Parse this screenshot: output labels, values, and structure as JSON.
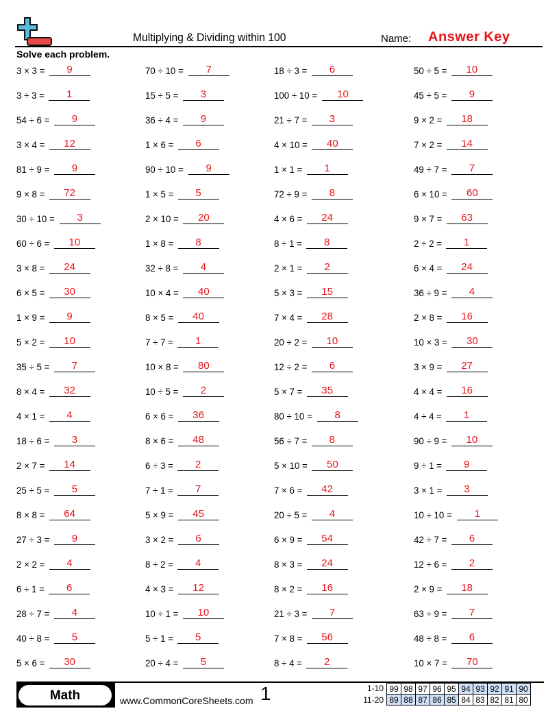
{
  "header": {
    "title": "Multiplying & Dividing within 100",
    "name_label": "Name:",
    "answer_key": "Answer Key",
    "logo_icon": "plus-minus-icon"
  },
  "instructions": "Solve each problem.",
  "colors": {
    "answer": "#e8141b",
    "score_highlight": "#cfe0f7",
    "logo_plus": "#5bbbe0",
    "logo_minus": "#e84848"
  },
  "rows": [
    [
      [
        "3 × 3 =",
        "9"
      ],
      [
        "70 ÷ 10 =",
        "7"
      ],
      [
        "18 ÷ 3 =",
        "6"
      ],
      [
        "50 ÷ 5 =",
        "10"
      ]
    ],
    [
      [
        "3 ÷ 3 =",
        "1"
      ],
      [
        "15 ÷ 5 =",
        "3"
      ],
      [
        "100 ÷ 10 =",
        "10"
      ],
      [
        "45 ÷ 5 =",
        "9"
      ]
    ],
    [
      [
        "54 ÷ 6 =",
        "9"
      ],
      [
        "36 ÷ 4 =",
        "9"
      ],
      [
        "21 ÷ 7 =",
        "3"
      ],
      [
        "9 × 2 =",
        "18"
      ]
    ],
    [
      [
        "3 × 4 =",
        "12"
      ],
      [
        "1 × 6 =",
        "6"
      ],
      [
        "4 × 10 =",
        "40"
      ],
      [
        "7 × 2 =",
        "14"
      ]
    ],
    [
      [
        "81 ÷ 9 =",
        "9"
      ],
      [
        "90 ÷ 10 =",
        "9"
      ],
      [
        "1 × 1 =",
        "1"
      ],
      [
        "49 ÷ 7 =",
        "7"
      ]
    ],
    [
      [
        "9 × 8 =",
        "72"
      ],
      [
        "1 × 5 =",
        "5"
      ],
      [
        "72 ÷ 9 =",
        "8"
      ],
      [
        "6 × 10 =",
        "60"
      ]
    ],
    [
      [
        "30 ÷ 10 =",
        "3"
      ],
      [
        "2 × 10 =",
        "20"
      ],
      [
        "4 × 6 =",
        "24"
      ],
      [
        "9 × 7 =",
        "63"
      ]
    ],
    [
      [
        "60 ÷ 6 =",
        "10"
      ],
      [
        "1 × 8 =",
        "8"
      ],
      [
        "8 ÷ 1 =",
        "8"
      ],
      [
        "2 ÷ 2 =",
        "1"
      ]
    ],
    [
      [
        "3 × 8 =",
        "24"
      ],
      [
        "32 ÷ 8 =",
        "4"
      ],
      [
        "2 × 1 =",
        "2"
      ],
      [
        "6 × 4 =",
        "24"
      ]
    ],
    [
      [
        "6 × 5 =",
        "30"
      ],
      [
        "10 × 4 =",
        "40"
      ],
      [
        "5 × 3 =",
        "15"
      ],
      [
        "36 ÷ 9 =",
        "4"
      ]
    ],
    [
      [
        "1 × 9 =",
        "9"
      ],
      [
        "8 × 5 =",
        "40"
      ],
      [
        "7 × 4 =",
        "28"
      ],
      [
        "2 × 8 =",
        "16"
      ]
    ],
    [
      [
        "5 × 2 =",
        "10"
      ],
      [
        "7 ÷ 7 =",
        "1"
      ],
      [
        "20 ÷ 2 =",
        "10"
      ],
      [
        "10 × 3 =",
        "30"
      ]
    ],
    [
      [
        "35 ÷ 5 =",
        "7"
      ],
      [
        "10 × 8 =",
        "80"
      ],
      [
        "12 ÷ 2 =",
        "6"
      ],
      [
        "3 × 9 =",
        "27"
      ]
    ],
    [
      [
        "8 × 4 =",
        "32"
      ],
      [
        "10 ÷ 5 =",
        "2"
      ],
      [
        "5 × 7 =",
        "35"
      ],
      [
        "4 × 4 =",
        "16"
      ]
    ],
    [
      [
        "4 × 1 =",
        "4"
      ],
      [
        "6 × 6 =",
        "36"
      ],
      [
        "80 ÷ 10 =",
        "8"
      ],
      [
        "4 ÷ 4 =",
        "1"
      ]
    ],
    [
      [
        "18 ÷ 6 =",
        "3"
      ],
      [
        "8 × 6 =",
        "48"
      ],
      [
        "56 ÷ 7 =",
        "8"
      ],
      [
        "90 ÷ 9 =",
        "10"
      ]
    ],
    [
      [
        "2 × 7 =",
        "14"
      ],
      [
        "6 ÷ 3 =",
        "2"
      ],
      [
        "5 × 10 =",
        "50"
      ],
      [
        "9 ÷ 1 =",
        "9"
      ]
    ],
    [
      [
        "25 ÷ 5 =",
        "5"
      ],
      [
        "7 ÷ 1 =",
        "7"
      ],
      [
        "7 × 6 =",
        "42"
      ],
      [
        "3 × 1 =",
        "3"
      ]
    ],
    [
      [
        "8 × 8 =",
        "64"
      ],
      [
        "5 × 9 =",
        "45"
      ],
      [
        "20 ÷ 5 =",
        "4"
      ],
      [
        "10 ÷ 10 =",
        "1"
      ]
    ],
    [
      [
        "27 ÷ 3 =",
        "9"
      ],
      [
        "3 × 2 =",
        "6"
      ],
      [
        "6 × 9 =",
        "54"
      ],
      [
        "42 ÷ 7 =",
        "6"
      ]
    ],
    [
      [
        "2 × 2 =",
        "4"
      ],
      [
        "8 ÷ 2 =",
        "4"
      ],
      [
        "8 × 3 =",
        "24"
      ],
      [
        "12 ÷ 6 =",
        "2"
      ]
    ],
    [
      [
        "6 ÷ 1 =",
        "6"
      ],
      [
        "4 × 3 =",
        "12"
      ],
      [
        "8 × 2 =",
        "16"
      ],
      [
        "2 × 9 =",
        "18"
      ]
    ],
    [
      [
        "28 ÷ 7 =",
        "4"
      ],
      [
        "10 ÷ 1 =",
        "10"
      ],
      [
        "21 ÷ 3 =",
        "7"
      ],
      [
        "63 ÷ 9 =",
        "7"
      ]
    ],
    [
      [
        "40 ÷ 8 =",
        "5"
      ],
      [
        "5 ÷ 1 =",
        "5"
      ],
      [
        "7 × 8 =",
        "56"
      ],
      [
        "48 ÷ 8 =",
        "6"
      ]
    ],
    [
      [
        "5 × 6 =",
        "30"
      ],
      [
        "20 ÷ 4 =",
        "5"
      ],
      [
        "8 ÷ 4 =",
        "2"
      ],
      [
        "10 × 7 =",
        "70"
      ]
    ]
  ],
  "footer": {
    "subject": "Math",
    "website": "www.CommonCoreSheets.com",
    "page": "1",
    "score_rows": [
      {
        "label": "1-10",
        "scores": [
          "99",
          "98",
          "97",
          "96",
          "95",
          "94",
          "93",
          "92",
          "91",
          "90"
        ],
        "highlighted": [
          "94",
          "93",
          "92",
          "91",
          "90"
        ]
      },
      {
        "label": "11-20",
        "scores": [
          "89",
          "88",
          "87",
          "86",
          "85",
          "84",
          "83",
          "82",
          "81",
          "80"
        ],
        "highlighted": [
          "89",
          "88",
          "87",
          "86",
          "85"
        ]
      }
    ]
  }
}
